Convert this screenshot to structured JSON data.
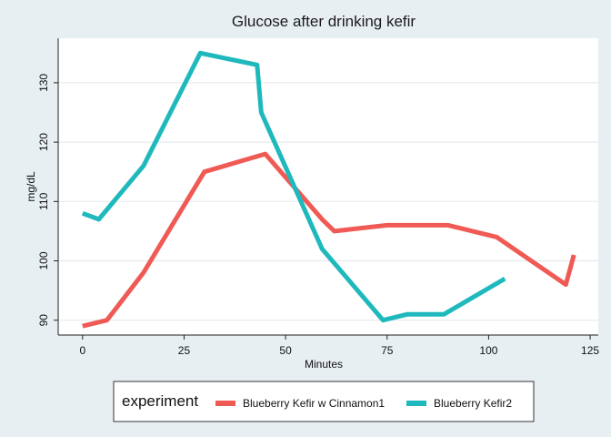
{
  "chart_data": {
    "type": "line",
    "title": "Glucose after drinking kefir",
    "xlabel": "Minutes",
    "ylabel": "mg/dL",
    "xlim": [
      -6,
      127
    ],
    "ylim": [
      87.5,
      137.5
    ],
    "xticks": [
      "0",
      "25",
      "50",
      "75",
      "100",
      "125"
    ],
    "yticks": [
      "90",
      "100",
      "110",
      "120",
      "130"
    ],
    "grid": true,
    "legend": {
      "title": "experiment",
      "position": "bottom"
    },
    "series": [
      {
        "name": "Blueberry Kefir w Cinnamon1",
        "color": "#f05a55",
        "x": [
          0,
          6,
          15,
          30,
          45,
          59,
          62,
          75,
          90,
          102,
          119,
          121
        ],
        "y": [
          89,
          90,
          98,
          115,
          118,
          107,
          105,
          106,
          106,
          104,
          96,
          101
        ]
      },
      {
        "name": "Blueberry Kefir2",
        "color": "#1fb9bd",
        "x": [
          0,
          4,
          15,
          29,
          43,
          44,
          59,
          74,
          80,
          89,
          104
        ],
        "y": [
          108,
          107,
          116,
          135,
          133,
          125,
          102,
          90,
          91,
          91,
          97
        ]
      }
    ]
  }
}
